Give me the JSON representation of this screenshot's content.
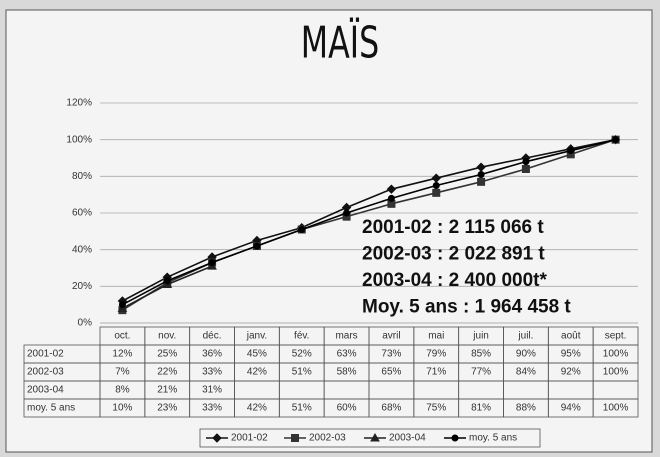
{
  "chart_data": {
    "type": "line",
    "title": "MAÏS",
    "categories": [
      "oct.",
      "nov.",
      "déc.",
      "janv.",
      "fév.",
      "mars",
      "avril",
      "mai",
      "juin",
      "juil.",
      "août",
      "sept."
    ],
    "series": [
      {
        "name": "2001-02",
        "color": "#111111",
        "marker": "diamond",
        "values": [
          12,
          25,
          36,
          45,
          52,
          63,
          73,
          79,
          85,
          90,
          95,
          100
        ],
        "value_labels": [
          "12%",
          "25%",
          "36%",
          "45%",
          "52%",
          "63%",
          "73%",
          "79%",
          "85%",
          "90%",
          "95%",
          "100%"
        ]
      },
      {
        "name": "2002-03",
        "color": "#333333",
        "marker": "square",
        "values": [
          7,
          22,
          33,
          42,
          51,
          58,
          65,
          71,
          77,
          84,
          92,
          100
        ],
        "value_labels": [
          "7%",
          "22%",
          "33%",
          "42%",
          "51%",
          "58%",
          "65%",
          "71%",
          "77%",
          "84%",
          "92%",
          "100%"
        ]
      },
      {
        "name": "2003-04",
        "color": "#222222",
        "marker": "triangle",
        "values": [
          8,
          21,
          31,
          null,
          null,
          null,
          null,
          null,
          null,
          null,
          null,
          null
        ],
        "value_labels": [
          "8%",
          "21%",
          "31%",
          null,
          null,
          null,
          null,
          null,
          null,
          null,
          null,
          null
        ]
      },
      {
        "name": "moy. 5 ans",
        "color": "#000000",
        "marker": "circle",
        "values": [
          10,
          23,
          33,
          42,
          51,
          60,
          68,
          75,
          81,
          88,
          94,
          100
        ],
        "value_labels": [
          "10%",
          "23%",
          "33%",
          "42%",
          "51%",
          "60%",
          "68%",
          "75%",
          "81%",
          "88%",
          "94%",
          "100%"
        ]
      }
    ],
    "ylim": [
      0,
      120
    ],
    "yticks": [
      {
        "value": 0,
        "label": "0%"
      },
      {
        "value": 20,
        "label": "20%"
      },
      {
        "value": 40,
        "label": "40%"
      },
      {
        "value": 60,
        "label": "60%"
      },
      {
        "value": 80,
        "label": "80%"
      },
      {
        "value": 100,
        "label": "100%"
      },
      {
        "value": 120,
        "label": "120%"
      }
    ],
    "grid": true,
    "annotations": [
      "2001-02 : 2 115 066 t",
      "2002-03 : 2 022 891 t",
      "2003-04 : 2 400 000t*",
      "Moy. 5 ans : 1 964 458 t"
    ],
    "legend": "bottom"
  }
}
